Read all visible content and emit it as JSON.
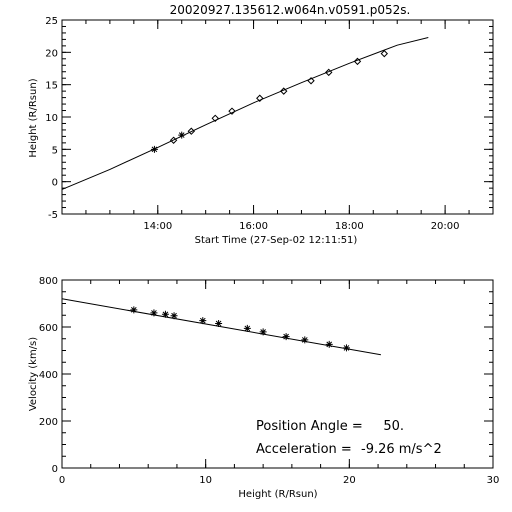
{
  "figure_title": "20020927.135612.w064n.v0591.p052s.",
  "annotations": {
    "position_angle_label": "Position Angle =",
    "position_angle_value": "50.",
    "acceleration_label": "Acceleration =",
    "acceleration_value": "-9.26 m/s^2"
  },
  "chart_data": [
    {
      "type": "scatter",
      "title": "20020927.135612.w064n.v0591.p052s.",
      "xlabel": "Start Time (27-Sep-02 12:11:51)",
      "ylabel": "Height (R/Rsun)",
      "x_unit": "hours since 27-Sep-02 00:00",
      "xlim": [
        12.0,
        21.0
      ],
      "ylim": [
        -5,
        25
      ],
      "x_ticks": [
        14,
        16,
        18,
        20
      ],
      "x_tick_labels": [
        "14:00",
        "16:00",
        "18:00",
        "20:00"
      ],
      "x_minor_step": 0.5,
      "y_ticks": [
        -5,
        0,
        5,
        10,
        15,
        20,
        25
      ],
      "y_tick_labels": [
        "-5",
        "0",
        "5",
        "10",
        "15",
        "20",
        "25"
      ],
      "y_minor_step": 1,
      "series": [
        {
          "marker": "asterisk",
          "points": [
            [
              13.93,
              5.0
            ],
            [
              14.5,
              7.2
            ]
          ]
        },
        {
          "marker": "diamond",
          "points": [
            [
              14.33,
              6.4
            ],
            [
              14.7,
              7.8
            ],
            [
              15.2,
              9.8
            ],
            [
              15.55,
              10.9
            ],
            [
              16.13,
              12.9
            ],
            [
              16.63,
              14.0
            ],
            [
              17.2,
              15.6
            ],
            [
              17.57,
              16.9
            ],
            [
              18.17,
              18.6
            ],
            [
              18.73,
              19.8
            ]
          ]
        }
      ],
      "fit_line": {
        "x": [
          12.0,
          13.0,
          14.0,
          15.0,
          16.0,
          17.0,
          18.0,
          19.0,
          19.65
        ],
        "y": [
          -1.2,
          1.9,
          5.3,
          8.8,
          12.2,
          15.3,
          18.3,
          21.1,
          22.3
        ]
      }
    },
    {
      "type": "scatter",
      "title": "",
      "xlabel": "Height (R/Rsun)",
      "ylabel": "Velocity (km/s)",
      "xlim": [
        0,
        30
      ],
      "ylim": [
        0,
        800
      ],
      "x_ticks": [
        0,
        10,
        20,
        30
      ],
      "x_tick_labels": [
        "0",
        "10",
        "20",
        "30"
      ],
      "x_minor_step": 2,
      "y_ticks": [
        0,
        200,
        400,
        600,
        800
      ],
      "y_tick_labels": [
        "0",
        "200",
        "400",
        "600",
        "800"
      ],
      "y_minor_step": 50,
      "series": [
        {
          "marker": "asterisk",
          "points": [
            [
              5.0,
              673
            ],
            [
              6.4,
              660
            ],
            [
              7.2,
              654
            ],
            [
              7.8,
              648
            ],
            [
              9.8,
              627
            ],
            [
              10.9,
              615
            ],
            [
              12.9,
              594
            ],
            [
              14.0,
              579
            ],
            [
              15.6,
              559
            ],
            [
              16.9,
              545
            ],
            [
              18.6,
              526
            ],
            [
              19.8,
              511
            ]
          ]
        }
      ],
      "fit_line": {
        "x": [
          0,
          22.2
        ],
        "y": [
          720,
          482
        ]
      }
    }
  ]
}
